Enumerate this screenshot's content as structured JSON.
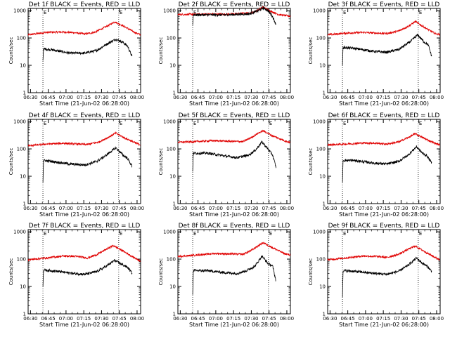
{
  "colors": {
    "events": "#000000",
    "lld": "#e00000",
    "frame": "#000000"
  },
  "common": {
    "xlabel": "Start Time (21-Jun-02 06:28:00)",
    "ylabel": "Counts/sec",
    "x_tick_labels": [
      "06:30",
      "06:45",
      "07:00",
      "07:15",
      "07:30",
      "07:45",
      "08:00"
    ],
    "x_tick_minutes": [
      2,
      17,
      32,
      47,
      62,
      77,
      92
    ],
    "y_tick_labels": [
      "1",
      "10",
      "100",
      "1000"
    ],
    "y_tick_values": [
      1,
      10,
      100,
      1000
    ],
    "xlim_minutes_after_start": [
      0,
      95
    ],
    "ylim": [
      1,
      1200
    ],
    "y_scale": "log",
    "vlines_minutes": [
      12.5,
      76.5
    ],
    "marker_letters": [
      "E",
      "E"
    ]
  },
  "chart_data": [
    {
      "type": "line",
      "title": "Det 1f BLACK = Events, RED = LLD",
      "series": [
        {
          "name": "Events",
          "color": "black",
          "start_min": 12.5,
          "end_min": 88,
          "points": [
            [
              12.5,
              15
            ],
            [
              13,
              40
            ],
            [
              20,
              37
            ],
            [
              35,
              28
            ],
            [
              48,
              28
            ],
            [
              58,
              35
            ],
            [
              65,
              55
            ],
            [
              74,
              90
            ],
            [
              80,
              70
            ],
            [
              84,
              50
            ],
            [
              88,
              20
            ]
          ]
        },
        {
          "name": "LLD",
          "color": "red",
          "start_min": 0,
          "end_min": 95,
          "points": [
            [
              0,
              130
            ],
            [
              15,
              160
            ],
            [
              30,
              165
            ],
            [
              40,
              155
            ],
            [
              48,
              140
            ],
            [
              56,
              160
            ],
            [
              66,
              260
            ],
            [
              73,
              390
            ],
            [
              80,
              280
            ],
            [
              90,
              160
            ],
            [
              95,
              130
            ]
          ]
        }
      ]
    },
    {
      "type": "line",
      "title": "Det 2f BLACK = Events, RED = LLD",
      "series": [
        {
          "name": "Events",
          "color": "black",
          "start_min": 12.5,
          "end_min": 83,
          "points": [
            [
              12.5,
              300
            ],
            [
              13,
              700
            ],
            [
              40,
              700
            ],
            [
              60,
              760
            ],
            [
              67,
              950
            ],
            [
              72,
              1250
            ],
            [
              76,
              1000
            ],
            [
              80,
              600
            ],
            [
              83,
              300
            ]
          ]
        },
        {
          "name": "LLD",
          "color": "red",
          "start_min": 0,
          "end_min": 95,
          "points": [
            [
              0,
              720
            ],
            [
              20,
              740
            ],
            [
              45,
              740
            ],
            [
              62,
              830
            ],
            [
              68,
              1050
            ],
            [
              72,
              1350
            ],
            [
              76,
              1050
            ],
            [
              85,
              720
            ],
            [
              95,
              620
            ]
          ]
        }
      ]
    },
    {
      "type": "line",
      "title": "Det 3f BLACK = Events, RED = LLD",
      "series": [
        {
          "name": "Events",
          "color": "black",
          "start_min": 12.5,
          "end_min": 88,
          "points": [
            [
              12.5,
              10
            ],
            [
              13,
              45
            ],
            [
              22,
              42
            ],
            [
              40,
              32
            ],
            [
              50,
              30
            ],
            [
              60,
              38
            ],
            [
              70,
              75
            ],
            [
              76,
              130
            ],
            [
              81,
              75
            ],
            [
              85,
              55
            ],
            [
              88,
              20
            ]
          ]
        },
        {
          "name": "LLD",
          "color": "red",
          "start_min": 0,
          "end_min": 95,
          "points": [
            [
              0,
              130
            ],
            [
              15,
              150
            ],
            [
              30,
              160
            ],
            [
              42,
              150
            ],
            [
              50,
              145
            ],
            [
              60,
              180
            ],
            [
              69,
              280
            ],
            [
              74,
              400
            ],
            [
              80,
              270
            ],
            [
              90,
              150
            ],
            [
              95,
              130
            ]
          ]
        }
      ]
    },
    {
      "type": "line",
      "title": "Det 4f BLACK = Events, RED = LLD",
      "series": [
        {
          "name": "Events",
          "color": "black",
          "start_min": 12.5,
          "end_min": 88,
          "points": [
            [
              12.5,
              6
            ],
            [
              13,
              38
            ],
            [
              20,
              35
            ],
            [
              35,
              28
            ],
            [
              48,
              26
            ],
            [
              58,
              35
            ],
            [
              65,
              55
            ],
            [
              74,
              110
            ],
            [
              80,
              60
            ],
            [
              84,
              45
            ],
            [
              88,
              22
            ]
          ]
        },
        {
          "name": "LLD",
          "color": "red",
          "start_min": 0,
          "end_min": 95,
          "points": [
            [
              0,
              130
            ],
            [
              15,
              150
            ],
            [
              30,
              160
            ],
            [
              42,
              150
            ],
            [
              50,
              145
            ],
            [
              60,
              180
            ],
            [
              68,
              270
            ],
            [
              74,
              380
            ],
            [
              80,
              270
            ],
            [
              90,
              170
            ],
            [
              95,
              140
            ]
          ]
        }
      ]
    },
    {
      "type": "line",
      "title": "Det 5f BLACK = Events, RED = LLD",
      "series": [
        {
          "name": "Events",
          "color": "black",
          "start_min": 12.5,
          "end_min": 83,
          "points": [
            [
              12.5,
              15
            ],
            [
              13,
              70
            ],
            [
              25,
              70
            ],
            [
              40,
              55
            ],
            [
              50,
              48
            ],
            [
              60,
              60
            ],
            [
              66,
              95
            ],
            [
              71,
              180
            ],
            [
              76,
              100
            ],
            [
              80,
              60
            ],
            [
              83,
              20
            ]
          ]
        },
        {
          "name": "LLD",
          "color": "red",
          "start_min": 0,
          "end_min": 95,
          "points": [
            [
              0,
              175
            ],
            [
              15,
              185
            ],
            [
              30,
              200
            ],
            [
              45,
              190
            ],
            [
              55,
              185
            ],
            [
              62,
              260
            ],
            [
              68,
              380
            ],
            [
              72,
              460
            ],
            [
              80,
              300
            ],
            [
              90,
              200
            ],
            [
              95,
              170
            ]
          ]
        }
      ]
    },
    {
      "type": "line",
      "title": "Det 6f BLACK = Events, RED = LLD",
      "series": [
        {
          "name": "Events",
          "color": "black",
          "start_min": 12.5,
          "end_min": 88,
          "points": [
            [
              12.5,
              6
            ],
            [
              13,
              38
            ],
            [
              22,
              38
            ],
            [
              40,
              30
            ],
            [
              50,
              28
            ],
            [
              60,
              35
            ],
            [
              68,
              60
            ],
            [
              75,
              120
            ],
            [
              80,
              70
            ],
            [
              84,
              55
            ],
            [
              88,
              30
            ]
          ]
        },
        {
          "name": "LLD",
          "color": "red",
          "start_min": 0,
          "end_min": 95,
          "points": [
            [
              0,
              140
            ],
            [
              15,
              150
            ],
            [
              30,
              165
            ],
            [
              42,
              160
            ],
            [
              50,
              150
            ],
            [
              60,
              180
            ],
            [
              68,
              260
            ],
            [
              74,
              360
            ],
            [
              80,
              260
            ],
            [
              90,
              165
            ],
            [
              95,
              140
            ]
          ]
        }
      ]
    },
    {
      "type": "line",
      "title": "Det 7f BLACK = Events, RED = LLD",
      "series": [
        {
          "name": "Events",
          "color": "black",
          "start_min": 12.5,
          "end_min": 88,
          "points": [
            [
              12.5,
              10
            ],
            [
              13,
              40
            ],
            [
              22,
              37
            ],
            [
              38,
              30
            ],
            [
              48,
              28
            ],
            [
              58,
              35
            ],
            [
              66,
              55
            ],
            [
              73,
              90
            ],
            [
              79,
              65
            ],
            [
              84,
              50
            ],
            [
              88,
              30
            ]
          ]
        },
        {
          "name": "LLD",
          "color": "red",
          "start_min": 0,
          "end_min": 95,
          "points": [
            [
              0,
              95
            ],
            [
              15,
              110
            ],
            [
              30,
              130
            ],
            [
              42,
              125
            ],
            [
              50,
              110
            ],
            [
              58,
              145
            ],
            [
              66,
              230
            ],
            [
              72,
              310
            ],
            [
              80,
              200
            ],
            [
              90,
              110
            ],
            [
              95,
              85
            ]
          ]
        }
      ]
    },
    {
      "type": "line",
      "title": "Det 8f BLACK = Events, RED = LLD",
      "series": [
        {
          "name": "Events",
          "color": "black",
          "start_min": 12.5,
          "end_min": 83,
          "points": [
            [
              12.5,
              5
            ],
            [
              13,
              38
            ],
            [
              25,
              38
            ],
            [
              40,
              32
            ],
            [
              50,
              30
            ],
            [
              58,
              38
            ],
            [
              65,
              55
            ],
            [
              71,
              130
            ],
            [
              76,
              70
            ],
            [
              80,
              55
            ],
            [
              83,
              15
            ]
          ]
        },
        {
          "name": "LLD",
          "color": "red",
          "start_min": 0,
          "end_min": 95,
          "points": [
            [
              0,
              125
            ],
            [
              15,
              140
            ],
            [
              30,
              160
            ],
            [
              45,
              155
            ],
            [
              55,
              150
            ],
            [
              62,
              210
            ],
            [
              68,
              310
            ],
            [
              72,
              400
            ],
            [
              80,
              260
            ],
            [
              90,
              160
            ],
            [
              95,
              140
            ]
          ]
        }
      ]
    },
    {
      "type": "line",
      "title": "Det 9f BLACK = Events, RED = LLD",
      "series": [
        {
          "name": "Events",
          "color": "black",
          "start_min": 12.5,
          "end_min": 88,
          "points": [
            [
              12.5,
              4
            ],
            [
              13,
              38
            ],
            [
              22,
              36
            ],
            [
              40,
              30
            ],
            [
              50,
              28
            ],
            [
              60,
              36
            ],
            [
              68,
              60
            ],
            [
              75,
              110
            ],
            [
              80,
              70
            ],
            [
              84,
              55
            ],
            [
              88,
              35
            ]
          ]
        },
        {
          "name": "LLD",
          "color": "red",
          "start_min": 0,
          "end_min": 95,
          "points": [
            [
              0,
              95
            ],
            [
              15,
              110
            ],
            [
              30,
              130
            ],
            [
              42,
              125
            ],
            [
              50,
              115
            ],
            [
              60,
              150
            ],
            [
              68,
              230
            ],
            [
              74,
              300
            ],
            [
              80,
              210
            ],
            [
              90,
              120
            ],
            [
              95,
              95
            ]
          ]
        }
      ]
    }
  ]
}
